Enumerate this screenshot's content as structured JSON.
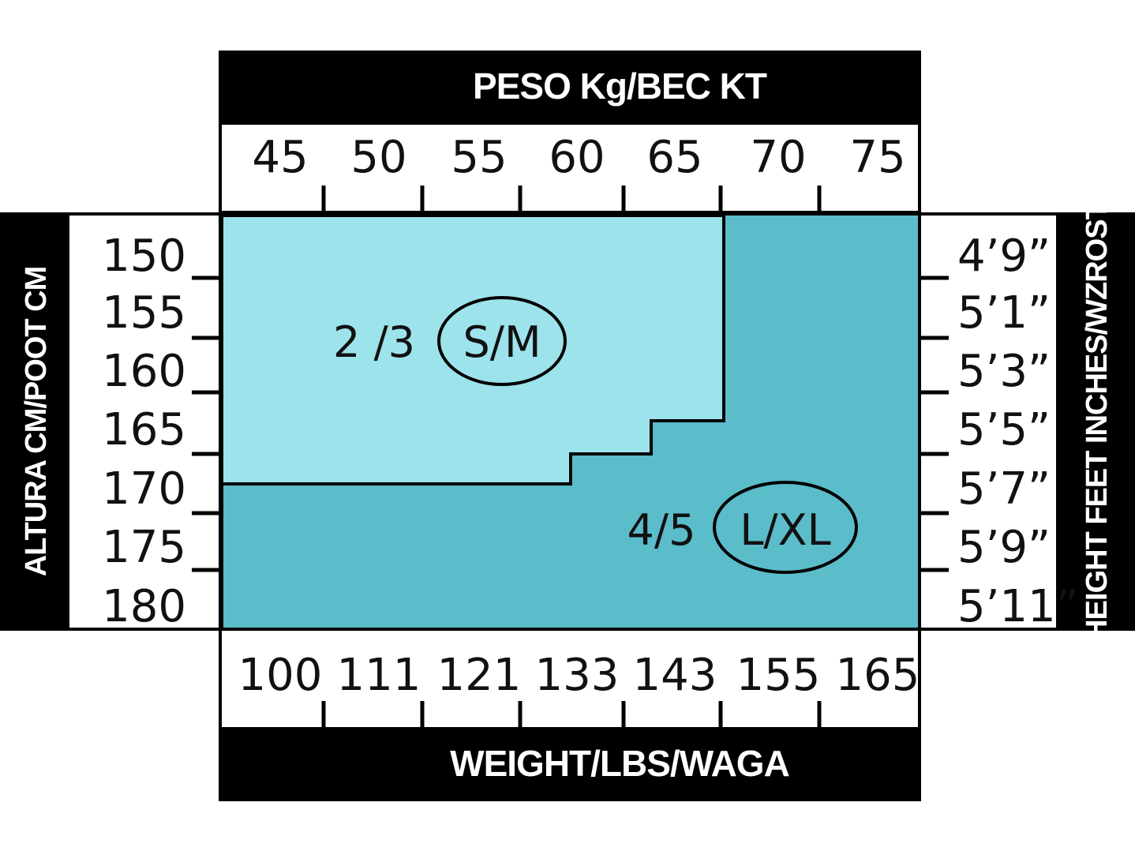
{
  "chart_data": {
    "type": "heatmap",
    "title_top": "PESO Kg/BEC KT",
    "title_bottom": "WEIGHT/LBS/WAGA",
    "title_left": "ALTURA CM/POOT CM",
    "title_right": "HEIGHT FEET INCHES/WZROST",
    "x_kg": [
      "45",
      "50",
      "55",
      "60",
      "65",
      "70",
      "75"
    ],
    "x_lbs": [
      "100",
      "111",
      "121",
      "133",
      "143",
      "155",
      "165"
    ],
    "y_cm": [
      "150",
      "155",
      "160",
      "165",
      "170",
      "175",
      "180"
    ],
    "y_ft": [
      "4’9”",
      "5’1”",
      "5’3”",
      "5’5”",
      "5’7”",
      "5’9”",
      "5’11”"
    ],
    "regions": [
      {
        "size_number": "2 /3",
        "size_letters": "S/M",
        "color": "#9de3ec"
      },
      {
        "size_number": "4/5",
        "size_letters": "L/XL",
        "color": "#5bbcca"
      }
    ]
  }
}
